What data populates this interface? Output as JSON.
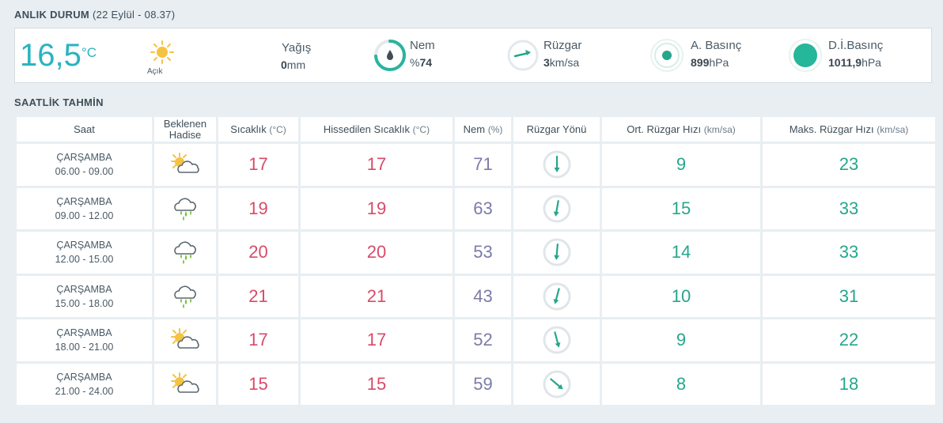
{
  "anlik": {
    "title": "ANLIK DURUM",
    "subtitle": "(22 Eylül - 08.37)",
    "temperature": "16,5",
    "temperature_unit": "°C",
    "condition": "Açık",
    "condition_icon": "sun-icon",
    "yagis": {
      "label": "Yağış",
      "value": "0",
      "unit": "mm"
    },
    "nem": {
      "label": "Nem",
      "prefix": "%",
      "value": "74",
      "fraction": 0.74
    },
    "ruzgar": {
      "label": "Rüzgar",
      "value": "3",
      "unit": "km/sa"
    },
    "a_basinc": {
      "label": "A. Basınç",
      "value": "899",
      "unit": "hPa"
    },
    "di_basinc": {
      "label": "D.İ.Basınç",
      "value": "1011,9",
      "unit": "hPa"
    }
  },
  "saatlik": {
    "title": "SAATLİK TAHMİN",
    "headers": {
      "saat": "Saat",
      "hadise": "Beklenen Hadise",
      "sicaklik": "Sıcaklık",
      "sicaklik_unit": "(°C)",
      "hissedilen": "Hissedilen Sıcaklık",
      "hissedilen_unit": "(°C)",
      "nem": "Nem",
      "nem_unit": "(%)",
      "ruzgar_yonu": "Rüzgar Yönü",
      "ort_ruzgar": "Ort. Rüzgar Hızı",
      "ort_ruzgar_unit": "(km/sa)",
      "maks_ruzgar": "Maks. Rüzgar Hızı",
      "maks_ruzgar_unit": "(km/sa)"
    },
    "rows": [
      {
        "day": "ÇARŞAMBA",
        "time": "06.00 - 09.00",
        "icon": "partly-cloudy-icon",
        "temp": "17",
        "feels": "17",
        "humidity": "71",
        "wind_dir_deg": 0,
        "avg_wind": "9",
        "max_wind": "23"
      },
      {
        "day": "ÇARŞAMBA",
        "time": "09.00 - 12.00",
        "icon": "rain-cloud-icon",
        "temp": "19",
        "feels": "19",
        "humidity": "63",
        "wind_dir_deg": 10,
        "avg_wind": "15",
        "max_wind": "33"
      },
      {
        "day": "ÇARŞAMBA",
        "time": "12.00 - 15.00",
        "icon": "rain-cloud-icon",
        "temp": "20",
        "feels": "20",
        "humidity": "53",
        "wind_dir_deg": 5,
        "avg_wind": "14",
        "max_wind": "33"
      },
      {
        "day": "ÇARŞAMBA",
        "time": "15.00 - 18.00",
        "icon": "rain-cloud-icon",
        "temp": "21",
        "feels": "21",
        "humidity": "43",
        "wind_dir_deg": 15,
        "avg_wind": "10",
        "max_wind": "31"
      },
      {
        "day": "ÇARŞAMBA",
        "time": "18.00 - 21.00",
        "icon": "partly-cloudy-icon",
        "temp": "17",
        "feels": "17",
        "humidity": "52",
        "wind_dir_deg": -15,
        "avg_wind": "9",
        "max_wind": "22"
      },
      {
        "day": "ÇARŞAMBA",
        "time": "21.00 - 24.00",
        "icon": "partly-cloudy-icon",
        "temp": "15",
        "feels": "15",
        "humidity": "59",
        "wind_dir_deg": -50,
        "avg_wind": "8",
        "max_wind": "18"
      }
    ]
  },
  "colors": {
    "accent": "#2ab3c1",
    "teal": "#26a68c",
    "temp_red": "#d94a68",
    "humidity": "#7b7ba8",
    "sun": "#f5c342"
  }
}
